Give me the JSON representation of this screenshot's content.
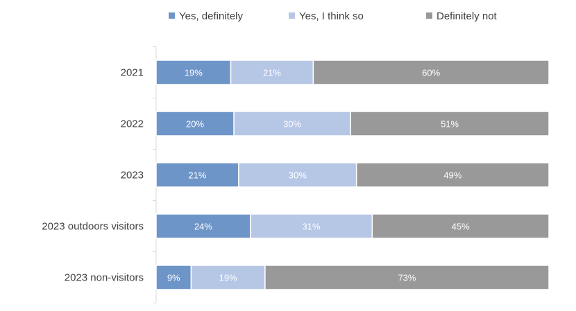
{
  "chart_data": {
    "type": "bar",
    "orientation": "horizontal",
    "stacked": true,
    "percent_stacked": true,
    "categories": [
      "2021",
      "2022",
      "2023",
      "2023 outdoors visitors",
      "2023 non-visitors"
    ],
    "series": [
      {
        "name": "Yes, definitely",
        "values": [
          19,
          20,
          21,
          24,
          9
        ],
        "color": "#6e95c8"
      },
      {
        "name": "Yes, I think so",
        "values": [
          21,
          30,
          30,
          31,
          19
        ],
        "color": "#b6c6e5"
      },
      {
        "name": "Definitely not",
        "values": [
          60,
          51,
          49,
          45,
          73
        ],
        "color": "#999999"
      }
    ],
    "data_labels": [
      [
        "19%",
        "20%",
        "21%",
        "24%",
        "9%"
      ],
      [
        "21%",
        "30%",
        "30%",
        "31%",
        "19%"
      ],
      [
        "60%",
        "51%",
        "49%",
        "45%",
        "73%"
      ]
    ],
    "title": "",
    "xlabel": "",
    "ylabel": "",
    "xlim": [
      0,
      100
    ],
    "grid": false,
    "legend_position": "top",
    "axis_color": "#d9d9d9"
  }
}
